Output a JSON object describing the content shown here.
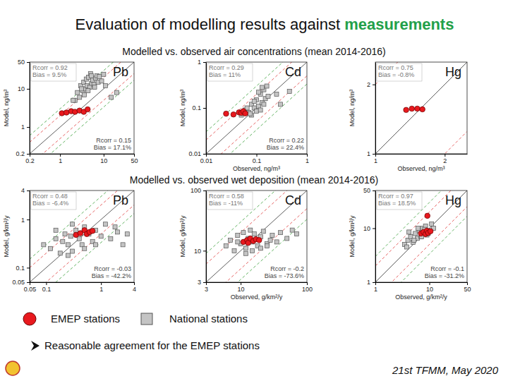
{
  "slide": {
    "title": [
      "Evaluation of modelling results against ",
      "measurements"
    ],
    "sections": [
      "Modelled vs. observed air concentrations (mean 2014-2016)",
      "Modelled vs. observed wet deposition (mean 2014-2016)"
    ],
    "bullet": "Reasonable agreement for the EMEP stations",
    "footer": "21st TFMM, May 2020"
  },
  "chart_data": [
    {
      "type": "scatter",
      "title": "Pb",
      "ylabel": "Model, ng/m³",
      "log": true,
      "xlim": [
        0.2,
        50
      ],
      "ylim": [
        0.2,
        50
      ],
      "xticks": [
        0.2,
        1,
        10,
        50
      ],
      "yticks": [
        0.2,
        1,
        10,
        50
      ],
      "ratio_lines": [
        {
          "value": 1,
          "color": "#333333",
          "line_style": "solid"
        },
        {
          "value": 2,
          "color": "#e03c3c",
          "line_style": "dashed"
        },
        {
          "value": 0.5,
          "color": "#e03c3c",
          "line_style": "dashed"
        },
        {
          "value": 3,
          "color": "#3aa03a",
          "line_style": "dashed"
        },
        {
          "value": 0.333,
          "color": "#3aa03a",
          "line_style": "dashed"
        }
      ],
      "annotations": [
        [
          "Rcorr = 0.92",
          "Bias = 9.5%"
        ],
        [
          "Rcorr = 0.15",
          "Bias = 17.1%"
        ]
      ],
      "series": [
        {
          "name": "EMEP stations",
          "color": "#e8191e",
          "marker": "circle",
          "x": [
            1.1,
            1.4,
            1.8,
            2.2,
            2.8,
            3.5,
            4.3
          ],
          "values": [
            2.3,
            2.4,
            2.6,
            2.5,
            2.7,
            2.5,
            2.9
          ]
        },
        {
          "name": "National stations",
          "color": "#c4c4c4",
          "marker": "square",
          "x": [
            2.2,
            2.5,
            2.8,
            3.0,
            3.3,
            3.5,
            3.8,
            4.0,
            4.2,
            4.5,
            4.8,
            5.0,
            5.3,
            5.6,
            6.0,
            6.5,
            7.0,
            7.5,
            8.0,
            9.0,
            10,
            11,
            3.1,
            3.6,
            4.4,
            5.2,
            6.2,
            2.0,
            15,
            20
          ],
          "values": [
            5,
            8,
            6,
            12,
            9,
            15,
            10,
            18,
            12,
            20,
            11,
            25,
            14,
            17,
            13,
            19,
            22,
            15,
            21,
            16,
            24,
            12,
            10,
            7,
            9,
            22,
            11,
            5,
            6,
            8
          ]
        }
      ]
    },
    {
      "type": "scatter",
      "title": "Cd",
      "xlabel": "Observed, ng/m³",
      "ylabel": "Model, ng/m³",
      "log": true,
      "xlim": [
        0.01,
        1
      ],
      "ylim": [
        0.01,
        1
      ],
      "xticks": [
        0.01,
        0.1,
        1
      ],
      "yticks": [
        0.01,
        0.1,
        1
      ],
      "ratio_lines": [
        {
          "value": 1,
          "color": "#333333",
          "line_style": "solid"
        },
        {
          "value": 2,
          "color": "#e03c3c",
          "line_style": "dashed"
        },
        {
          "value": 0.5,
          "color": "#e03c3c",
          "line_style": "dashed"
        },
        {
          "value": 3,
          "color": "#3aa03a",
          "line_style": "dashed"
        },
        {
          "value": 0.333,
          "color": "#3aa03a",
          "line_style": "dashed"
        }
      ],
      "annotations": [
        [
          "Rcorr = 0.29",
          "Bias = 11%"
        ],
        [
          "Rcorr = 0.22",
          "Bias = 22.4%"
        ]
      ],
      "series": [
        {
          "name": "EMEP stations",
          "color": "#e8191e",
          "marker": "circle",
          "x": [
            0.025,
            0.035,
            0.045,
            0.05,
            0.055,
            0.06
          ],
          "values": [
            0.075,
            0.072,
            0.08,
            0.078,
            0.085,
            0.076
          ]
        },
        {
          "name": "National stations",
          "color": "#c4c4c4",
          "marker": "square",
          "x": [
            0.05,
            0.06,
            0.07,
            0.08,
            0.09,
            0.1,
            0.11,
            0.12,
            0.13,
            0.14,
            0.15,
            0.16,
            0.17,
            0.08,
            0.1,
            0.12,
            0.065,
            0.09,
            0.11,
            0.14,
            0.075,
            0.13,
            0.25,
            0.45,
            0.3
          ],
          "values": [
            0.07,
            0.09,
            0.08,
            0.12,
            0.1,
            0.15,
            0.11,
            0.2,
            0.13,
            0.25,
            0.16,
            0.3,
            0.18,
            0.07,
            0.085,
            0.09,
            0.1,
            0.14,
            0.22,
            0.12,
            0.075,
            0.28,
            0.2,
            0.23,
            0.12
          ]
        }
      ]
    },
    {
      "type": "scatter",
      "title": "Hg",
      "xlabel": "Observed, ng/m³",
      "ylabel": "Model, ng/m³",
      "log": true,
      "xlim": [
        1,
        2.5
      ],
      "ylim": [
        1,
        2.5
      ],
      "xticks": [
        1,
        2
      ],
      "yticks": [
        1,
        2
      ],
      "ratio_lines": [
        {
          "value": 1,
          "color": "#333333",
          "line_style": "solid"
        },
        {
          "value": 2,
          "color": "#e03c3c",
          "line_style": "dashed"
        },
        {
          "value": 0.5,
          "color": "#e03c3c",
          "line_style": "dashed"
        },
        {
          "value": 3,
          "color": "#3aa03a",
          "line_style": "dashed"
        },
        {
          "value": 0.333,
          "color": "#3aa03a",
          "line_style": "dashed"
        }
      ],
      "annotations": [
        [
          "Rcorr = 0.75",
          "Bias = -0.8%"
        ]
      ],
      "series": [
        {
          "name": "EMEP stations",
          "color": "#e8191e",
          "marker": "circle",
          "x": [
            1.36,
            1.44,
            1.52,
            1.6
          ],
          "values": [
            1.55,
            1.57,
            1.57,
            1.56
          ]
        }
      ]
    },
    {
      "type": "scatter",
      "title": "Pb",
      "ylabel": "Model, g/km²/y",
      "log": true,
      "xlim": [
        0.05,
        4
      ],
      "ylim": [
        0.05,
        4
      ],
      "xticks": [
        0.05,
        0.1,
        1,
        4
      ],
      "yticks": [
        0.05,
        0.1,
        1,
        4
      ],
      "ratio_lines": [
        {
          "value": 1,
          "color": "#333333",
          "line_style": "solid"
        },
        {
          "value": 2,
          "color": "#e03c3c",
          "line_style": "dashed"
        },
        {
          "value": 0.5,
          "color": "#e03c3c",
          "line_style": "dashed"
        },
        {
          "value": 3,
          "color": "#3aa03a",
          "line_style": "dashed"
        },
        {
          "value": 0.333,
          "color": "#3aa03a",
          "line_style": "dashed"
        }
      ],
      "annotations": [
        [
          "Rcorr = 0.48",
          "Bias = -6.4%"
        ],
        [
          "Rcorr = -0.03",
          "Bias = -42.2%"
        ]
      ],
      "series": [
        {
          "name": "EMEP stations",
          "color": "#e8191e",
          "marker": "circle",
          "x": [
            0.35,
            0.42,
            0.5,
            0.55,
            0.62,
            0.7
          ],
          "values": [
            0.48,
            0.52,
            0.6,
            0.5,
            0.55,
            0.58
          ]
        },
        {
          "name": "National stations",
          "color": "#c4c4c4",
          "marker": "square",
          "x": [
            0.09,
            0.12,
            0.15,
            0.18,
            0.2,
            0.22,
            0.25,
            0.28,
            0.3,
            0.35,
            0.4,
            0.45,
            0.5,
            0.6,
            0.7,
            0.8,
            1.0,
            1.2,
            1.5,
            2.0,
            2.5,
            3.0,
            0.3,
            0.5,
            0.8,
            0.15,
            1.8,
            0.25
          ],
          "values": [
            0.3,
            0.25,
            0.4,
            0.2,
            0.35,
            0.5,
            0.3,
            0.45,
            0.22,
            0.6,
            0.4,
            0.3,
            0.7,
            0.5,
            0.35,
            0.6,
            0.45,
            0.8,
            0.4,
            0.55,
            0.3,
            0.5,
            0.8,
            0.25,
            0.3,
            0.6,
            0.7,
            0.18
          ]
        }
      ]
    },
    {
      "type": "scatter",
      "title": "Cd",
      "xlabel": "Observed, g/km²/y",
      "ylabel": "Model, g/km²/y",
      "log": true,
      "xlim": [
        3,
        100
      ],
      "ylim": [
        3,
        100
      ],
      "xticks": [
        3,
        10,
        100
      ],
      "yticks": [
        3,
        10,
        100
      ],
      "ratio_lines": [
        {
          "value": 1,
          "color": "#333333",
          "line_style": "solid"
        },
        {
          "value": 2,
          "color": "#e03c3c",
          "line_style": "dashed"
        },
        {
          "value": 0.5,
          "color": "#e03c3c",
          "line_style": "dashed"
        },
        {
          "value": 3,
          "color": "#3aa03a",
          "line_style": "dashed"
        },
        {
          "value": 0.333,
          "color": "#3aa03a",
          "line_style": "dashed"
        }
      ],
      "annotations": [
        [
          "Rcorr = 0.58",
          "Bias = -11%"
        ],
        [
          "Rcorr = -0.2",
          "Bias = -73.6%"
        ]
      ],
      "series": [
        {
          "name": "EMEP stations",
          "color": "#e8191e",
          "marker": "circle",
          "x": [
            11,
            12.5,
            13,
            14,
            15.5,
            17,
            19
          ],
          "values": [
            14,
            15,
            13.5,
            16,
            14.5,
            15.5,
            15
          ]
        },
        {
          "name": "National stations",
          "color": "#c4c4c4",
          "marker": "square",
          "x": [
            6,
            7,
            8,
            9,
            10,
            11,
            12,
            13,
            14,
            15,
            16,
            18,
            20,
            22,
            25,
            28,
            30,
            35,
            40,
            50,
            60,
            70,
            12,
            15,
            20,
            9,
            25
          ],
          "values": [
            12,
            15,
            10,
            18,
            13,
            20,
            11,
            16,
            22,
            14,
            19,
            12,
            17,
            21,
            13,
            15,
            18,
            14,
            20,
            16,
            22,
            19,
            9,
            10,
            11,
            14,
            12
          ]
        }
      ]
    },
    {
      "type": "scatter",
      "title": "Hg",
      "xlabel": "Observed, g/km²/y",
      "ylabel": "Model, g/km²/y",
      "log": true,
      "xlim": [
        1,
        50
      ],
      "ylim": [
        1,
        50
      ],
      "xticks": [
        1,
        10,
        50
      ],
      "yticks": [
        1,
        10,
        50
      ],
      "ratio_lines": [
        {
          "value": 1,
          "color": "#333333",
          "line_style": "solid"
        },
        {
          "value": 2,
          "color": "#e03c3c",
          "line_style": "dashed"
        },
        {
          "value": 0.5,
          "color": "#e03c3c",
          "line_style": "dashed"
        },
        {
          "value": 3,
          "color": "#3aa03a",
          "line_style": "dashed"
        },
        {
          "value": 0.333,
          "color": "#3aa03a",
          "line_style": "dashed"
        }
      ],
      "annotations": [
        [
          "Rcorr = 0.97",
          "Bias = 18.5%"
        ],
        [
          "Rcorr = -0.1",
          "Bias = -31.2%"
        ]
      ],
      "series": [
        {
          "name": "EMEP stations",
          "color": "#e8191e",
          "marker": "circle",
          "x": [
            7,
            7.8,
            8.5,
            9,
            9.5,
            10.5,
            9.2
          ],
          "values": [
            8,
            8.5,
            7.8,
            9,
            8.2,
            8.8,
            17
          ]
        },
        {
          "name": "National stations",
          "color": "#c4c4c4",
          "marker": "square",
          "x": [
            3.5,
            4,
            4.5,
            5,
            5.5,
            6,
            6.5,
            7,
            7.5,
            8,
            8.5,
            9,
            10,
            11,
            4.2,
            5.2,
            6.2,
            7.2,
            8.2,
            9.5,
            3.8,
            12
          ],
          "values": [
            5,
            6,
            7,
            5.5,
            8,
            6.5,
            9,
            7,
            10,
            8,
            11,
            7.5,
            9,
            12,
            8.5,
            6,
            10,
            7,
            9.5,
            8,
            4.5,
            10
          ]
        }
      ]
    }
  ]
}
